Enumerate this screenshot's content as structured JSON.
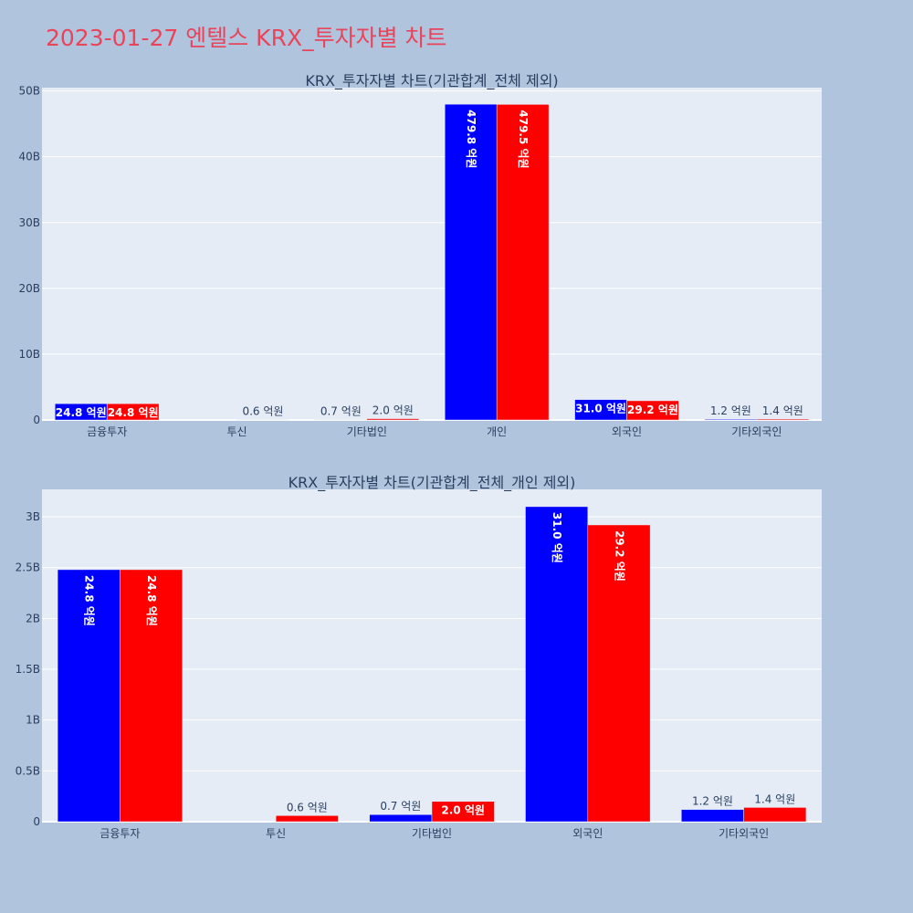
{
  "page": {
    "title": "2023-01-27 엔텔스 KRX_투자자별 차트"
  },
  "colors": {
    "series1": "#0000ff",
    "series2": "#ff0000",
    "title": "#e8445a",
    "background": "#b0c4de",
    "plot": "#e5ecf6"
  },
  "chart_data": [
    {
      "type": "bar",
      "title": "KRX_투자자별 차트(기관합계_전체 제외)",
      "categories": [
        "금융투자",
        "투신",
        "기타법인",
        "개인",
        "외국인",
        "기타외국인"
      ],
      "series": [
        {
          "color": "#0000ff",
          "values": [
            2480000000,
            0,
            70000000,
            47980000000,
            3100000000,
            120000000
          ],
          "labels": [
            "24.8 억원",
            "",
            "0.7 억원",
            "479.8 억원",
            "31.0 억원",
            "1.2 억원"
          ]
        },
        {
          "color": "#ff0000",
          "values": [
            2480000000,
            60000000,
            200000000,
            47950000000,
            2920000000,
            140000000
          ],
          "labels": [
            "24.8 억원",
            "0.6 억원",
            "2.0 억원",
            "479.5 억원",
            "29.2 억원",
            "1.4 억원"
          ]
        }
      ],
      "yticks": [
        0,
        10000000000,
        20000000000,
        30000000000,
        40000000000,
        50000000000
      ],
      "ytick_labels": [
        "0",
        "10B",
        "20B",
        "30B",
        "40B",
        "50B"
      ],
      "ylim": [
        0,
        50500000000
      ],
      "grid": true
    },
    {
      "type": "bar",
      "title": "KRX_투자자별 차트(기관합계_전체_개인 제외)",
      "categories": [
        "금융투자",
        "투신",
        "기타법인",
        "외국인",
        "기타외국인"
      ],
      "series": [
        {
          "color": "#0000ff",
          "values": [
            2480000000,
            0,
            70000000,
            3100000000,
            120000000
          ],
          "labels": [
            "24.8 억원",
            "",
            "0.7 억원",
            "31.0 억원",
            "1.2 억원"
          ]
        },
        {
          "color": "#ff0000",
          "values": [
            2480000000,
            60000000,
            200000000,
            2920000000,
            140000000
          ],
          "labels": [
            "24.8 억원",
            "0.6 억원",
            "2.0 억원",
            "29.2 억원",
            "1.4 억원"
          ]
        }
      ],
      "yticks": [
        0,
        500000000,
        1000000000,
        1500000000,
        2000000000,
        2500000000,
        3000000000
      ],
      "ytick_labels": [
        "0",
        "0.5B",
        "1B",
        "1.5B",
        "2B",
        "2.5B",
        "3B"
      ],
      "ylim": [
        0,
        3270000000
      ],
      "grid": true
    }
  ]
}
